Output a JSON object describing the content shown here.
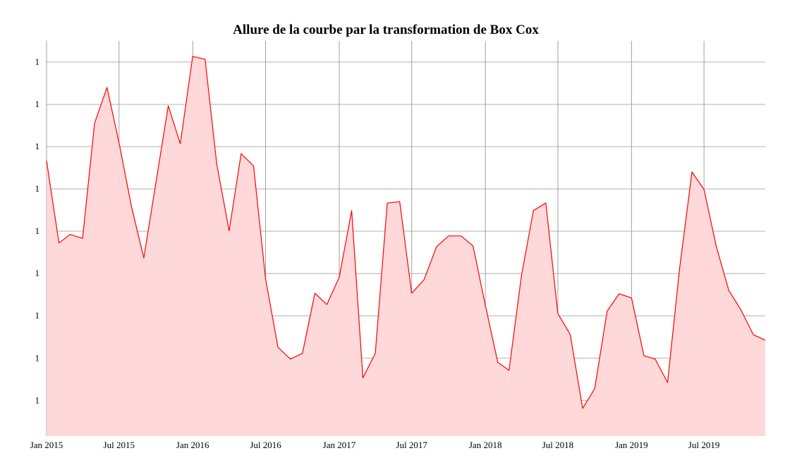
{
  "chart_data": {
    "type": "area",
    "title": "Allure de la courbe par la transformation de Box Cox",
    "xlabel": "",
    "ylabel": "",
    "x_range": [
      "2015-01-01",
      "2019-12-01"
    ],
    "x_ticks": [
      {
        "date": "2015-01-01",
        "label": "Jan 2015"
      },
      {
        "date": "2015-07-01",
        "label": "Jul 2015"
      },
      {
        "date": "2016-01-01",
        "label": "Jan 2016"
      },
      {
        "date": "2016-07-01",
        "label": "Jul 2016"
      },
      {
        "date": "2017-01-01",
        "label": "Jan 2017"
      },
      {
        "date": "2017-07-01",
        "label": "Jul 2017"
      },
      {
        "date": "2018-01-01",
        "label": "Jan 2018"
      },
      {
        "date": "2018-07-01",
        "label": "Jul 2018"
      },
      {
        "date": "2019-01-01",
        "label": "Jan 2019"
      },
      {
        "date": "2019-07-01",
        "label": "Jul 2019"
      }
    ],
    "y_tick_labels": [
      "1",
      "1",
      "1",
      "1",
      "1",
      "1",
      "1",
      "1",
      "1"
    ],
    "grid": true,
    "line_color": "#ff0000",
    "fill_color": "#ffd9d9",
    "x": [
      "2015-01-01",
      "2015-02-01",
      "2015-03-01",
      "2015-04-01",
      "2015-05-01",
      "2015-06-01",
      "2015-07-01",
      "2015-08-01",
      "2015-09-01",
      "2015-10-01",
      "2015-11-01",
      "2015-12-01",
      "2016-01-01",
      "2016-02-01",
      "2016-03-01",
      "2016-04-01",
      "2016-05-01",
      "2016-06-01",
      "2016-07-01",
      "2016-08-01",
      "2016-09-01",
      "2016-10-01",
      "2016-11-01",
      "2016-12-01",
      "2017-01-01",
      "2017-02-01",
      "2017-03-01",
      "2017-04-01",
      "2017-05-01",
      "2017-06-01",
      "2017-07-01",
      "2017-08-01",
      "2017-09-01",
      "2017-10-01",
      "2017-11-01",
      "2017-12-01",
      "2018-01-01",
      "2018-02-01",
      "2018-03-01",
      "2018-04-01",
      "2018-05-01",
      "2018-06-01",
      "2018-07-01",
      "2018-08-01",
      "2018-09-01",
      "2018-10-01",
      "2018-11-01",
      "2018-12-01",
      "2019-01-01",
      "2019-02-01",
      "2019-03-01",
      "2019-04-01",
      "2019-05-01",
      "2019-06-01",
      "2019-07-01",
      "2019-08-01",
      "2019-09-01",
      "2019-10-01",
      "2019-11-01",
      "2019-12-01"
    ],
    "values": [
      6.25,
      4.5,
      4.68,
      4.6,
      7.05,
      7.81,
      6.63,
      5.28,
      4.18,
      5.78,
      7.42,
      6.61,
      8.47,
      8.41,
      6.18,
      4.76,
      6.4,
      6.14,
      3.74,
      2.28,
      2.03,
      2.15,
      3.43,
      3.19,
      3.77,
      5.19,
      1.63,
      2.15,
      5.35,
      5.38,
      3.43,
      3.72,
      4.42,
      4.65,
      4.65,
      4.44,
      3.17,
      1.96,
      1.79,
      3.8,
      5.19,
      5.35,
      3.0,
      2.55,
      0.98,
      1.4,
      3.05,
      3.42,
      3.33,
      2.1,
      2.03,
      1.53,
      3.95,
      6.01,
      5.64,
      4.42,
      3.49,
      3.08,
      2.55,
      2.43
    ]
  }
}
